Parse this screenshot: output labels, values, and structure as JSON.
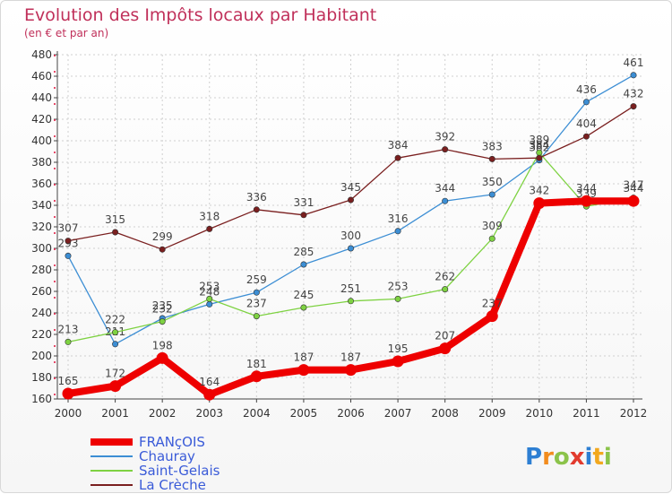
{
  "chart_data": {
    "type": "line",
    "title": "Evolution des Impôts locaux par Habitant",
    "subtitle": "(en € et par an)",
    "xlabel": "",
    "ylabel": "",
    "ylim": [
      160,
      480
    ],
    "yticks": [
      160,
      180,
      200,
      220,
      240,
      260,
      280,
      300,
      320,
      340,
      360,
      380,
      400,
      420,
      440,
      460,
      480
    ],
    "categories": [
      "2000",
      "2001",
      "2002",
      "2003",
      "2004",
      "2005",
      "2006",
      "2007",
      "2008",
      "2009",
      "2010",
      "2011",
      "2012"
    ],
    "series": [
      {
        "name": "FRANçOIS",
        "color": "#ee0000",
        "emphasis": true,
        "values": [
          165,
          172,
          198,
          164,
          181,
          187,
          187,
          195,
          207,
          237,
          342,
          344,
          344
        ],
        "labels": [
          "165",
          "172",
          "198",
          "164",
          "181",
          "187",
          "187",
          "195",
          "207",
          "237",
          "342",
          "344",
          "344"
        ]
      },
      {
        "name": "Chauray",
        "color": "#3c8ed4",
        "values": [
          293,
          211,
          235,
          248,
          259,
          285,
          300,
          316,
          344,
          350,
          382,
          436,
          461
        ],
        "labels": [
          "293",
          "211",
          "235",
          "248",
          "259",
          "285",
          "300",
          "316",
          "344",
          "350",
          "382",
          "436",
          "461"
        ]
      },
      {
        "name": "Saint-Gelais",
        "color": "#7ed242",
        "values": [
          213,
          222,
          232,
          253,
          237,
          245,
          251,
          253,
          262,
          309,
          389,
          339,
          347
        ],
        "labels": [
          "213",
          "222",
          "232",
          "253",
          "237",
          "245",
          "251",
          "253",
          "262",
          "309",
          "389",
          "339",
          "347"
        ]
      },
      {
        "name": "La Crèche",
        "color": "#7a1f1f",
        "values": [
          307,
          315,
          299,
          318,
          336,
          331,
          345,
          384,
          392,
          383,
          384,
          404,
          432
        ],
        "labels": [
          "307",
          "315",
          "299",
          "318",
          "336",
          "331",
          "345",
          "384",
          "392",
          "383",
          "384",
          "404",
          "432"
        ]
      }
    ],
    "legend_position": "bottom-left"
  },
  "logo": {
    "text": "Proxiti",
    "letters": [
      "P",
      "r",
      "o",
      "x",
      "i",
      "t",
      "i"
    ],
    "colors": [
      "#2d7fd3",
      "#f28c1e",
      "#8bc34a",
      "#e23b2e",
      "#2d7fd3",
      "#f2a81e",
      "#8bc34a"
    ]
  }
}
